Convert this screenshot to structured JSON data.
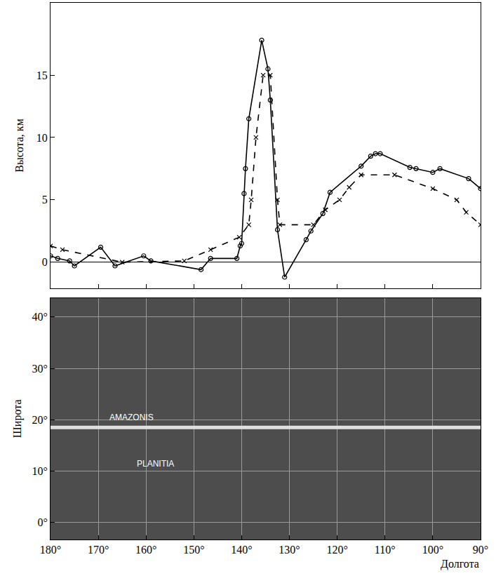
{
  "chart_data": [
    {
      "type": "line",
      "y_label": "Высота, км",
      "xlim": [
        180,
        90
      ],
      "ylim": [
        -2.1,
        20.8
      ],
      "xticks": [
        180,
        170,
        160,
        150,
        140,
        130,
        120,
        110,
        100,
        90
      ],
      "yticks": [
        0,
        5,
        10,
        15
      ],
      "tick_labels": "y",
      "series": [
        {
          "color": "#000000",
          "marker": "circle-open",
          "line_style": "solid",
          "x": [
            180,
            178.5,
            176,
            175,
            169.5,
            166.5,
            160.5,
            159,
            148.5,
            146.5,
            141,
            140.3,
            140,
            139.5,
            139.2,
            138.5,
            135.8,
            134.5,
            134,
            132.5,
            131,
            126.5,
            125.5,
            123,
            121.5,
            115,
            113,
            112,
            111,
            104.8,
            103.5,
            100,
            98.5,
            92.5,
            90
          ],
          "values": [
            0.5,
            0.3,
            0.1,
            -0.3,
            1.2,
            -0.3,
            0.5,
            0.1,
            -0.6,
            0.3,
            0.3,
            1.3,
            1.5,
            5.5,
            7.5,
            11.5,
            17.8,
            15.5,
            13,
            2.6,
            -1.2,
            1.8,
            2.5,
            3.9,
            5.6,
            7.7,
            8.5,
            8.7,
            8.7,
            7.6,
            7.5,
            7.2,
            7.5,
            6.7,
            5.9
          ]
        },
        {
          "color": "#000000",
          "marker": "x",
          "line_style": "dash",
          "x": [
            180,
            177.5,
            165,
            152,
            146.5,
            140.5,
            138.5,
            138,
            137,
            135.5,
            134,
            132.5,
            132,
            125,
            122.5,
            119.5,
            117.5,
            115,
            108,
            100,
            95,
            93,
            90
          ],
          "values": [
            1.3,
            1.0,
            0.0,
            0.1,
            1.0,
            2.0,
            3.0,
            5.0,
            10,
            15,
            15,
            5,
            3,
            3,
            4.2,
            5,
            6,
            7,
            7,
            5.9,
            5,
            4,
            3
          ]
        }
      ]
    },
    {
      "type": "map",
      "x_label": "Долгота",
      "y_label": "Широта",
      "color": "#4d4d4d",
      "grid": true,
      "xlim": [
        180,
        90
      ],
      "ylim": [
        -3.3,
        43.7
      ],
      "xticks": [
        {
          "value": 180,
          "label": "180°"
        },
        {
          "value": 170,
          "label": "170°"
        },
        {
          "value": 160,
          "label": "160°"
        },
        {
          "value": 150,
          "label": "150°"
        },
        {
          "value": 140,
          "label": "140°"
        },
        {
          "value": 130,
          "label": "130°"
        },
        {
          "value": 120,
          "label": "120°"
        },
        {
          "value": 110,
          "label": "110°"
        },
        {
          "value": 100,
          "label": "100°"
        },
        {
          "value": 90,
          "label": "90°"
        }
      ],
      "yticks": [
        {
          "value": 0,
          "label": "0°"
        },
        {
          "value": 10,
          "label": "10°"
        },
        {
          "value": 20,
          "label": "20°"
        },
        {
          "value": 30,
          "label": "30°"
        },
        {
          "value": 40,
          "label": "40°"
        }
      ],
      "series": [
        {
          "color": "#e0e0e0",
          "line_style": "solid",
          "x": [
            180,
            90
          ],
          "values": [
            18.5,
            18.5
          ]
        }
      ],
      "annotations": [
        {
          "text": "AMAZONIS",
          "x": 163,
          "y": 20.5
        },
        {
          "text": "PLANITIA",
          "x": 158,
          "y": 11.5
        }
      ]
    }
  ]
}
